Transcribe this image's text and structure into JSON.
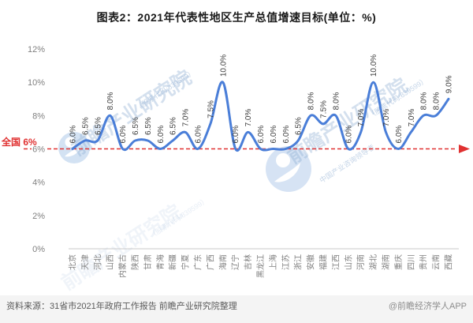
{
  "title": "图表2：2021年代表性地区生产总值增速目标(单位：%)",
  "source": {
    "text": "资料来源：31省市2021年政府工作报告 前瞻产业研究院整理",
    "credit": "@前瞻经济学人APP"
  },
  "watermark": {
    "brand": "前瞻产业研究院",
    "slogan": "中国产业咨询领导者",
    "code": "（股票代码:839599）"
  },
  "colors": {
    "line": "#4a7ed8",
    "reference": "#e03131",
    "axis_text": "#808080",
    "data_label_text": "#3d3d3d",
    "watermark": "#8fafd4"
  },
  "chart_data": {
    "type": "line",
    "title": "图表2：2021年代表性地区生产总值增速目标(单位：%)",
    "unit": "%",
    "smooth": true,
    "grid": false,
    "legend": "none",
    "categories": [
      "北京",
      "天津",
      "河北",
      "山西",
      "内蒙古",
      "陕西",
      "甘肃",
      "青海",
      "新疆",
      "宁夏",
      "广东",
      "广西",
      "海南",
      "辽宁",
      "吉林",
      "黑龙江",
      "上海",
      "江苏",
      "浙江",
      "安徽",
      "福建",
      "江西",
      "山东",
      "河南",
      "湖北",
      "湖南",
      "重庆",
      "四川",
      "贵州",
      "云南",
      "西藏"
    ],
    "values": [
      6.0,
      6.5,
      6.5,
      8.0,
      6.0,
      6.5,
      6.5,
      6.0,
      6.5,
      7.0,
      6.0,
      7.5,
      10.0,
      6.0,
      7.0,
      6.0,
      6.0,
      6.0,
      6.5,
      8.0,
      7.5,
      8.0,
      6.0,
      7.0,
      10.0,
      7.0,
      6.0,
      7.0,
      8.0,
      8.0,
      9.0
    ],
    "ylim": [
      0,
      12
    ],
    "y_tick_interval": 2,
    "y_ticks": [
      "0%",
      "2%",
      "4%",
      "6%",
      "8%",
      "10%",
      "12%"
    ],
    "reference_line": {
      "label": "全国 6%",
      "value": 6
    }
  }
}
